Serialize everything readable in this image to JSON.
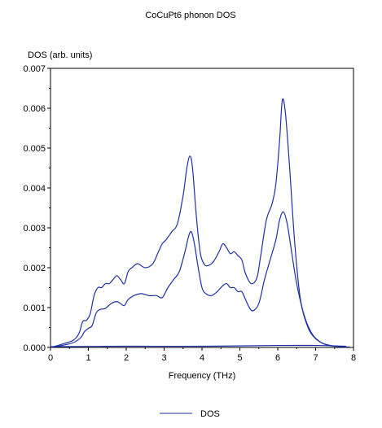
{
  "chart_data": {
    "type": "line",
    "title": "CoCuPt6 phonon DOS",
    "ylabel": "DOS (arb. units)",
    "xlabel": "Frequency (THz)",
    "xlim": [
      0,
      8
    ],
    "ylim": [
      0,
      0.007
    ],
    "x_ticks": [
      "0",
      "1",
      "2",
      "3",
      "4",
      "5",
      "6",
      "7",
      "8"
    ],
    "y_ticks": [
      "0.000",
      "0.001",
      "0.002",
      "0.003",
      "0.004",
      "0.005",
      "0.006",
      "0.007"
    ],
    "grid": false,
    "legend_position": "bottom",
    "line_color": "#1f2fa6",
    "series": [
      {
        "name": "DOS",
        "x": [
          0,
          0.3,
          0.6,
          0.75,
          0.85,
          0.95,
          1.05,
          1.15,
          1.25,
          1.35,
          1.45,
          1.55,
          1.65,
          1.75,
          1.85,
          1.95,
          2.05,
          2.15,
          2.3,
          2.5,
          2.7,
          2.85,
          2.95,
          3.05,
          3.2,
          3.35,
          3.5,
          3.6,
          3.68,
          3.75,
          3.85,
          3.95,
          4.05,
          4.15,
          4.3,
          4.45,
          4.55,
          4.65,
          4.75,
          4.85,
          4.95,
          5.05,
          5.15,
          5.3,
          5.45,
          5.55,
          5.7,
          5.85,
          5.95,
          6.05,
          6.12,
          6.2,
          6.3,
          6.45,
          6.6,
          6.8,
          7.0,
          7.2,
          7.4,
          7.6,
          7.8
        ],
        "values": [
          0,
          8e-05,
          0.00018,
          0.00035,
          0.00065,
          0.00068,
          0.00085,
          0.0013,
          0.0015,
          0.0015,
          0.0016,
          0.0016,
          0.0017,
          0.0018,
          0.0017,
          0.0016,
          0.0019,
          0.002,
          0.0021,
          0.002,
          0.0021,
          0.0024,
          0.0026,
          0.0027,
          0.0029,
          0.0031,
          0.0038,
          0.0045,
          0.0048,
          0.0045,
          0.0033,
          0.0024,
          0.0021,
          0.00205,
          0.00215,
          0.0024,
          0.0026,
          0.0025,
          0.00235,
          0.0024,
          0.0023,
          0.0022,
          0.00185,
          0.0016,
          0.00175,
          0.0023,
          0.0032,
          0.0036,
          0.0041,
          0.0052,
          0.0062,
          0.0059,
          0.0047,
          0.0026,
          0.0012,
          0.0005,
          0.00022,
          0.0001,
          5e-05,
          3e-05,
          2e-05
        ]
      },
      {
        "name": "",
        "x": [
          0,
          0.3,
          0.6,
          0.8,
          0.9,
          1.0,
          1.1,
          1.2,
          1.3,
          1.45,
          1.6,
          1.75,
          1.85,
          1.95,
          2.05,
          2.2,
          2.4,
          2.6,
          2.8,
          2.95,
          3.1,
          3.25,
          3.4,
          3.55,
          3.65,
          3.72,
          3.8,
          3.9,
          4.0,
          4.1,
          4.25,
          4.4,
          4.55,
          4.65,
          4.75,
          4.85,
          4.95,
          5.05,
          5.15,
          5.25,
          5.35,
          5.5,
          5.65,
          5.8,
          5.95,
          6.05,
          6.15,
          6.25,
          6.35,
          6.5,
          6.7,
          6.9,
          7.1,
          7.3,
          7.5,
          7.7,
          7.9
        ],
        "values": [
          0,
          5e-05,
          0.00012,
          0.00025,
          0.0004,
          0.00048,
          0.00055,
          0.00085,
          0.00095,
          0.00098,
          0.0011,
          0.00115,
          0.0011,
          0.00105,
          0.0012,
          0.0013,
          0.00135,
          0.0013,
          0.0013,
          0.00125,
          0.0015,
          0.0017,
          0.0019,
          0.0024,
          0.0028,
          0.0029,
          0.0026,
          0.002,
          0.0015,
          0.00135,
          0.0013,
          0.0014,
          0.00155,
          0.0016,
          0.0015,
          0.0015,
          0.0014,
          0.0014,
          0.0012,
          0.001,
          0.00092,
          0.0011,
          0.0017,
          0.0022,
          0.0027,
          0.0032,
          0.0034,
          0.0031,
          0.0025,
          0.0016,
          0.0008,
          0.00035,
          0.00015,
          6e-05,
          3e-05,
          2e-05,
          1e-05
        ]
      },
      {
        "name": "",
        "x": [
          0,
          2,
          4,
          6,
          7,
          7.5,
          7.8
        ],
        "values": [
          2e-05,
          3e-05,
          3e-05,
          5e-05,
          5e-05,
          4e-05,
          3e-05
        ]
      }
    ]
  }
}
